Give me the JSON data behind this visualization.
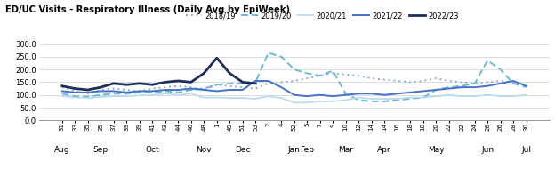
{
  "title": "ED/UC Visits - Respiratory Illness (Daily Avg by EpiWeek)",
  "ylim": [
    0.0,
    320.0
  ],
  "yticks": [
    0.0,
    50.0,
    100.0,
    150.0,
    200.0,
    250.0,
    300.0
  ],
  "background_color": "#ffffff",
  "legend_labels": [
    "2018/19",
    "2019/20",
    "2020/21",
    "2021/22",
    "2022/23"
  ],
  "x_tick_labels": [
    "31",
    "33",
    "35",
    "35",
    "37",
    "39",
    "39",
    "41",
    "43",
    "44",
    "46",
    "48",
    "1",
    "49",
    "51",
    "53",
    "2",
    "4",
    "52",
    "5",
    "7",
    "9",
    "10",
    "12",
    "14",
    "14",
    "16",
    "18",
    "18",
    "20",
    "22",
    "22",
    "24",
    "26",
    "26",
    "28",
    "30"
  ],
  "month_labels": [
    "Aug",
    "Sep",
    "Oct",
    "Nov",
    "Dec",
    "Jan",
    "Feb",
    "Mar",
    "Apr",
    "May",
    "Jun",
    "Jul"
  ],
  "month_positions": [
    0,
    3,
    7,
    11,
    14,
    18,
    19,
    22,
    25,
    29,
    33,
    36
  ],
  "series": {
    "2018/19": {
      "color": "#8faacc",
      "linestyle": "dotted",
      "linewidth": 1.4,
      "values": [
        130,
        115,
        105,
        120,
        125,
        120,
        115,
        125,
        130,
        135,
        130,
        120,
        140,
        135,
        130,
        125,
        145,
        150,
        155,
        165,
        175,
        185,
        180,
        175,
        165,
        160,
        155,
        150,
        155,
        165,
        155,
        150,
        145,
        150,
        155,
        150,
        140
      ]
    },
    "2019/20": {
      "color": "#70b8d8",
      "linestyle": "dashed",
      "linewidth": 1.4,
      "values": [
        105,
        95,
        93,
        100,
        105,
        105,
        110,
        110,
        115,
        110,
        120,
        125,
        140,
        145,
        145,
        150,
        265,
        250,
        200,
        185,
        175,
        195,
        105,
        80,
        75,
        75,
        80,
        85,
        90,
        120,
        130,
        135,
        145,
        235,
        200,
        145,
        130
      ]
    },
    "2020/21": {
      "color": "#b8d8ee",
      "linestyle": "solid",
      "linewidth": 1.2,
      "values": [
        95,
        90,
        88,
        92,
        95,
        95,
        98,
        100,
        105,
        100,
        105,
        90,
        90,
        88,
        88,
        85,
        95,
        88,
        70,
        70,
        75,
        75,
        80,
        90,
        85,
        85,
        85,
        90,
        90,
        95,
        100,
        95,
        95,
        100,
        95,
        95,
        100
      ]
    },
    "2021/22": {
      "color": "#4472c4",
      "linestyle": "solid",
      "linewidth": 1.4,
      "values": [
        115,
        110,
        110,
        115,
        115,
        110,
        115,
        115,
        120,
        120,
        125,
        120,
        115,
        120,
        120,
        155,
        155,
        130,
        100,
        95,
        100,
        95,
        100,
        105,
        105,
        100,
        105,
        110,
        115,
        120,
        125,
        130,
        130,
        135,
        145,
        155,
        135
      ]
    },
    "2022/23": {
      "color": "#1f2d5a",
      "linestyle": "solid",
      "linewidth": 2.0,
      "values": [
        135,
        125,
        120,
        130,
        145,
        140,
        145,
        140,
        150,
        155,
        150,
        185,
        245,
        185,
        150,
        145,
        null,
        null,
        null,
        null,
        null,
        null,
        null,
        null,
        null,
        null,
        null,
        null,
        null,
        null,
        null,
        null,
        null,
        null,
        null,
        null,
        null
      ]
    }
  }
}
